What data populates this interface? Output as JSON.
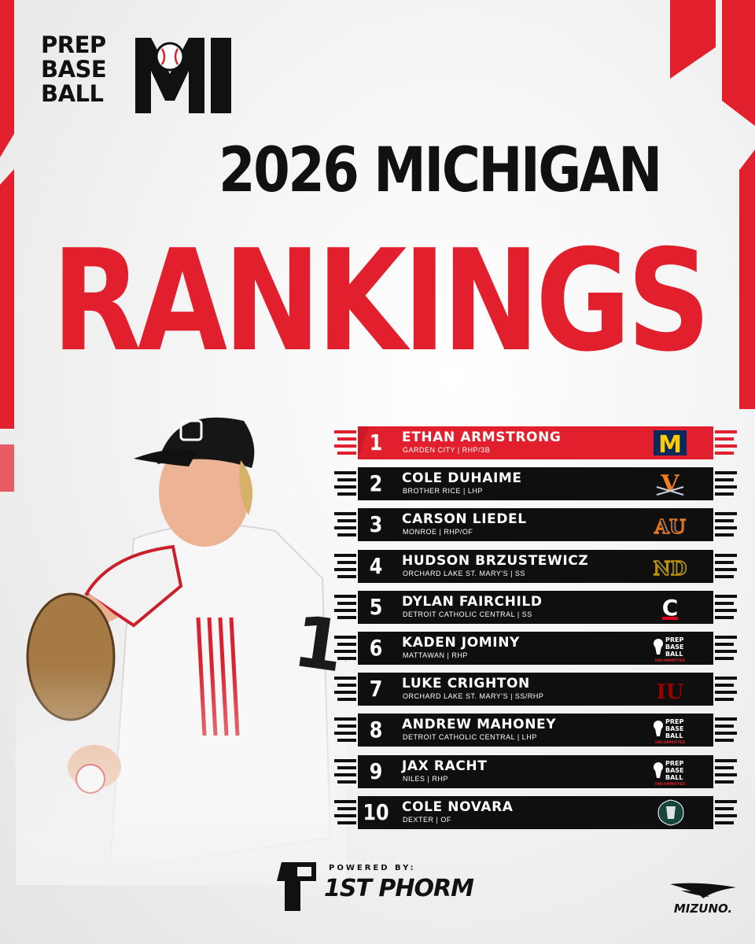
{
  "brand": {
    "logo_lines": [
      "PREP",
      "BASE",
      "BALL"
    ],
    "logo_state": "MI"
  },
  "title": {
    "line1": "2026 MICHIGAN",
    "line2": "RANKINGS"
  },
  "colors": {
    "accent_red": "#e21f2c",
    "dark": "#111111",
    "bg": "#f1f1f1"
  },
  "rankings": [
    {
      "rank": "1",
      "name": "ETHAN ARMSTRONG",
      "meta": "GARDEN CITY | RHP/3B",
      "school_icon": "michigan-logo-icon",
      "highlight": true
    },
    {
      "rank": "2",
      "name": "COLE DUHAIME",
      "meta": "BROTHER RICE | LHP",
      "school_icon": "virginia-logo-icon",
      "highlight": false
    },
    {
      "rank": "3",
      "name": "CARSON LIEDEL",
      "meta": "MONROE | RHP/OF",
      "school_icon": "auburn-logo-icon",
      "highlight": false
    },
    {
      "rank": "4",
      "name": "HUDSON BRZUSTEWICZ",
      "meta": "ORCHARD LAKE ST. MARY'S | SS",
      "school_icon": "notre-dame-logo-icon",
      "highlight": false
    },
    {
      "rank": "5",
      "name": "DYLAN FAIRCHILD",
      "meta": "DETROIT CATHOLIC CENTRAL | SS",
      "school_icon": "cincinnati-logo-icon",
      "highlight": false
    },
    {
      "rank": "6",
      "name": "KADEN JOMINY",
      "meta": "MATTAWAN | RHP",
      "school_icon": "uncommitted-logo-icon",
      "highlight": false
    },
    {
      "rank": "7",
      "name": "LUKE CRIGHTON",
      "meta": "ORCHARD LAKE ST. MARY'S | SS/RHP",
      "school_icon": "indiana-logo-icon",
      "highlight": false
    },
    {
      "rank": "8",
      "name": "ANDREW MAHONEY",
      "meta": "DETROIT CATHOLIC CENTRAL | LHP",
      "school_icon": "uncommitted-logo-icon",
      "highlight": false
    },
    {
      "rank": "9",
      "name": "JAX RACHT",
      "meta": "NILES | RHP",
      "school_icon": "uncommitted-logo-icon",
      "highlight": false
    },
    {
      "rank": "10",
      "name": "COLE NOVARA",
      "meta": "DEXTER | OF",
      "school_icon": "michigan-state-logo-icon",
      "highlight": false
    }
  ],
  "uncommitted_logo": {
    "lines": [
      "PREP",
      "BASE",
      "BALL"
    ],
    "caption": "UNCOMMITTED"
  },
  "school_marks": {
    "michigan": "M",
    "virginia": "V",
    "auburn": "AU",
    "notre_dame": "ND",
    "cincinnati": "C",
    "indiana": "IU"
  },
  "footer": {
    "powered_label": "POWERED BY:",
    "powered_brand": "1ST PHORM",
    "sponsor": "MIZUNO."
  }
}
